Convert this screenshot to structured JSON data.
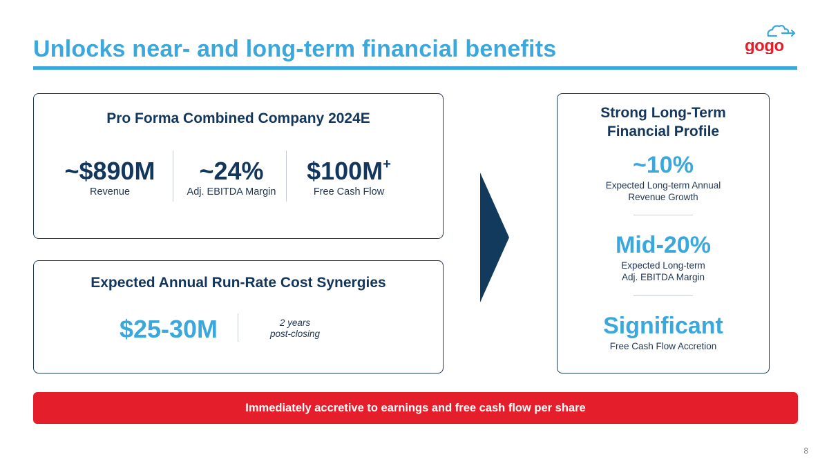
{
  "title": "Unlocks near- and long-term financial benefits",
  "logo": {
    "text": "gogo",
    "icon": "cloud-arrow-icon",
    "color": "#e41f2b"
  },
  "pro_forma": {
    "heading": "Pro Forma Combined Company 2024E",
    "metrics": [
      {
        "value": "~$890M",
        "label": "Revenue"
      },
      {
        "value": "~24%",
        "label": "Adj. EBITDA Margin"
      },
      {
        "value": "$100M",
        "superscript": "+",
        "label": "Free Cash Flow"
      }
    ]
  },
  "synergies": {
    "heading": "Expected Annual Run-Rate Cost Synergies",
    "value": "$25-30M",
    "note_line1": "2 years",
    "note_line2": "post-closing"
  },
  "long_term": {
    "heading_line1": "Strong Long-Term",
    "heading_line2": "Financial Profile",
    "items": [
      {
        "value": "~10%",
        "label_line1": "Expected Long-term Annual",
        "label_line2": "Revenue Growth"
      },
      {
        "value": "Mid-20%",
        "label_line1": "Expected Long-term",
        "label_line2": "Adj. EBITDA Margin"
      },
      {
        "value": "Significant",
        "label_line1": "Free Cash Flow Accretion",
        "label_line2": ""
      }
    ]
  },
  "banner": {
    "text": "Immediately accretive to earnings and free cash flow per share"
  },
  "page_number": "8",
  "colors": {
    "accent": "#3aa8dc",
    "navy": "#12365c",
    "red": "#e41f2b"
  }
}
